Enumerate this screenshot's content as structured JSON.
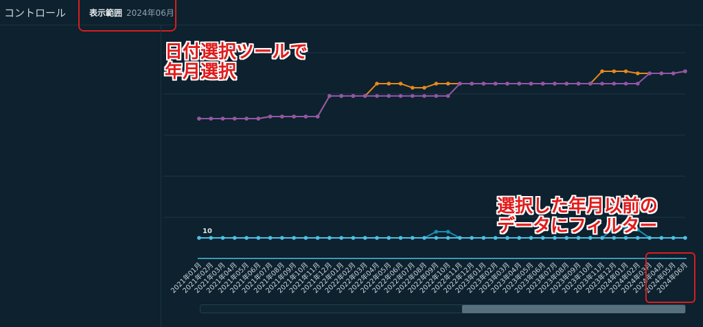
{
  "header": {
    "title": "コントロール",
    "range_label": "表示範囲",
    "range_value": "2024年06月"
  },
  "annotations": {
    "top_line1": "日付選択ツールで",
    "top_line2": "年月選択",
    "bottom_line1": "選択した年月以前の",
    "bottom_line2": "データにフィルター"
  },
  "chart_data": {
    "type": "line",
    "x": [
      "2021年01月",
      "2021年02月",
      "2021年03月",
      "2021年04月",
      "2021年05月",
      "2021年06月",
      "2021年07月",
      "2021年08月",
      "2021年09月",
      "2021年10月",
      "2021年11月",
      "2021年12月",
      "2022年01月",
      "2022年02月",
      "2022年03月",
      "2022年04月",
      "2022年05月",
      "2022年06月",
      "2022年07月",
      "2022年08月",
      "2022年09月",
      "2022年10月",
      "2022年11月",
      "2022年12月",
      "2023年01月",
      "2023年02月",
      "2023年03月",
      "2023年04月",
      "2023年05月",
      "2023年06月",
      "2023年07月",
      "2023年08月",
      "2023年09月",
      "2023年10月",
      "2023年11月",
      "2023年12月",
      "2024年01月",
      "2024年02月",
      "2024年03月",
      "2024年04月",
      "2024年05月",
      "2024年06月"
    ],
    "ylim": [
      0,
      100
    ],
    "grid": true,
    "data_labels": [
      {
        "series": 2,
        "index": 0,
        "text": "10"
      }
    ],
    "series": [
      {
        "color": "#e8891c",
        "values": [
          68,
          68,
          68,
          68,
          68,
          68,
          69,
          69,
          69,
          69,
          69,
          79,
          79,
          79,
          79,
          85,
          85,
          85,
          83,
          83,
          85,
          85,
          85,
          85,
          85,
          85,
          85,
          85,
          85,
          85,
          85,
          85,
          85,
          85,
          91,
          91,
          91,
          90,
          90,
          90,
          90,
          91
        ]
      },
      {
        "color": "#9456a8",
        "values": [
          68,
          68,
          68,
          68,
          68,
          68,
          69,
          69,
          69,
          69,
          69,
          79,
          79,
          79,
          79,
          79,
          79,
          79,
          79,
          79,
          79,
          79,
          85,
          85,
          85,
          85,
          85,
          85,
          85,
          85,
          85,
          85,
          85,
          85,
          85,
          85,
          85,
          85,
          90,
          90,
          90,
          91
        ]
      },
      {
        "color": "#1790b8",
        "values": [
          10,
          10,
          10,
          10,
          10,
          10,
          10,
          10,
          10,
          10,
          10,
          10,
          10,
          10,
          10,
          10,
          10,
          10,
          10,
          10,
          13,
          13,
          10,
          10,
          10,
          10,
          10,
          10,
          10,
          10,
          10,
          10,
          10,
          10,
          10,
          15,
          15,
          14,
          10,
          10,
          10,
          10
        ]
      },
      {
        "color": "#4fc0e3",
        "values": [
          10,
          10,
          10,
          10,
          10,
          10,
          10,
          10,
          10,
          10,
          10,
          10,
          10,
          10,
          10,
          10,
          10,
          10,
          10,
          10,
          10,
          10,
          10,
          10,
          10,
          10,
          10,
          10,
          10,
          10,
          10,
          10,
          10,
          10,
          10,
          10,
          10,
          10,
          10,
          10,
          10,
          10
        ]
      }
    ]
  }
}
